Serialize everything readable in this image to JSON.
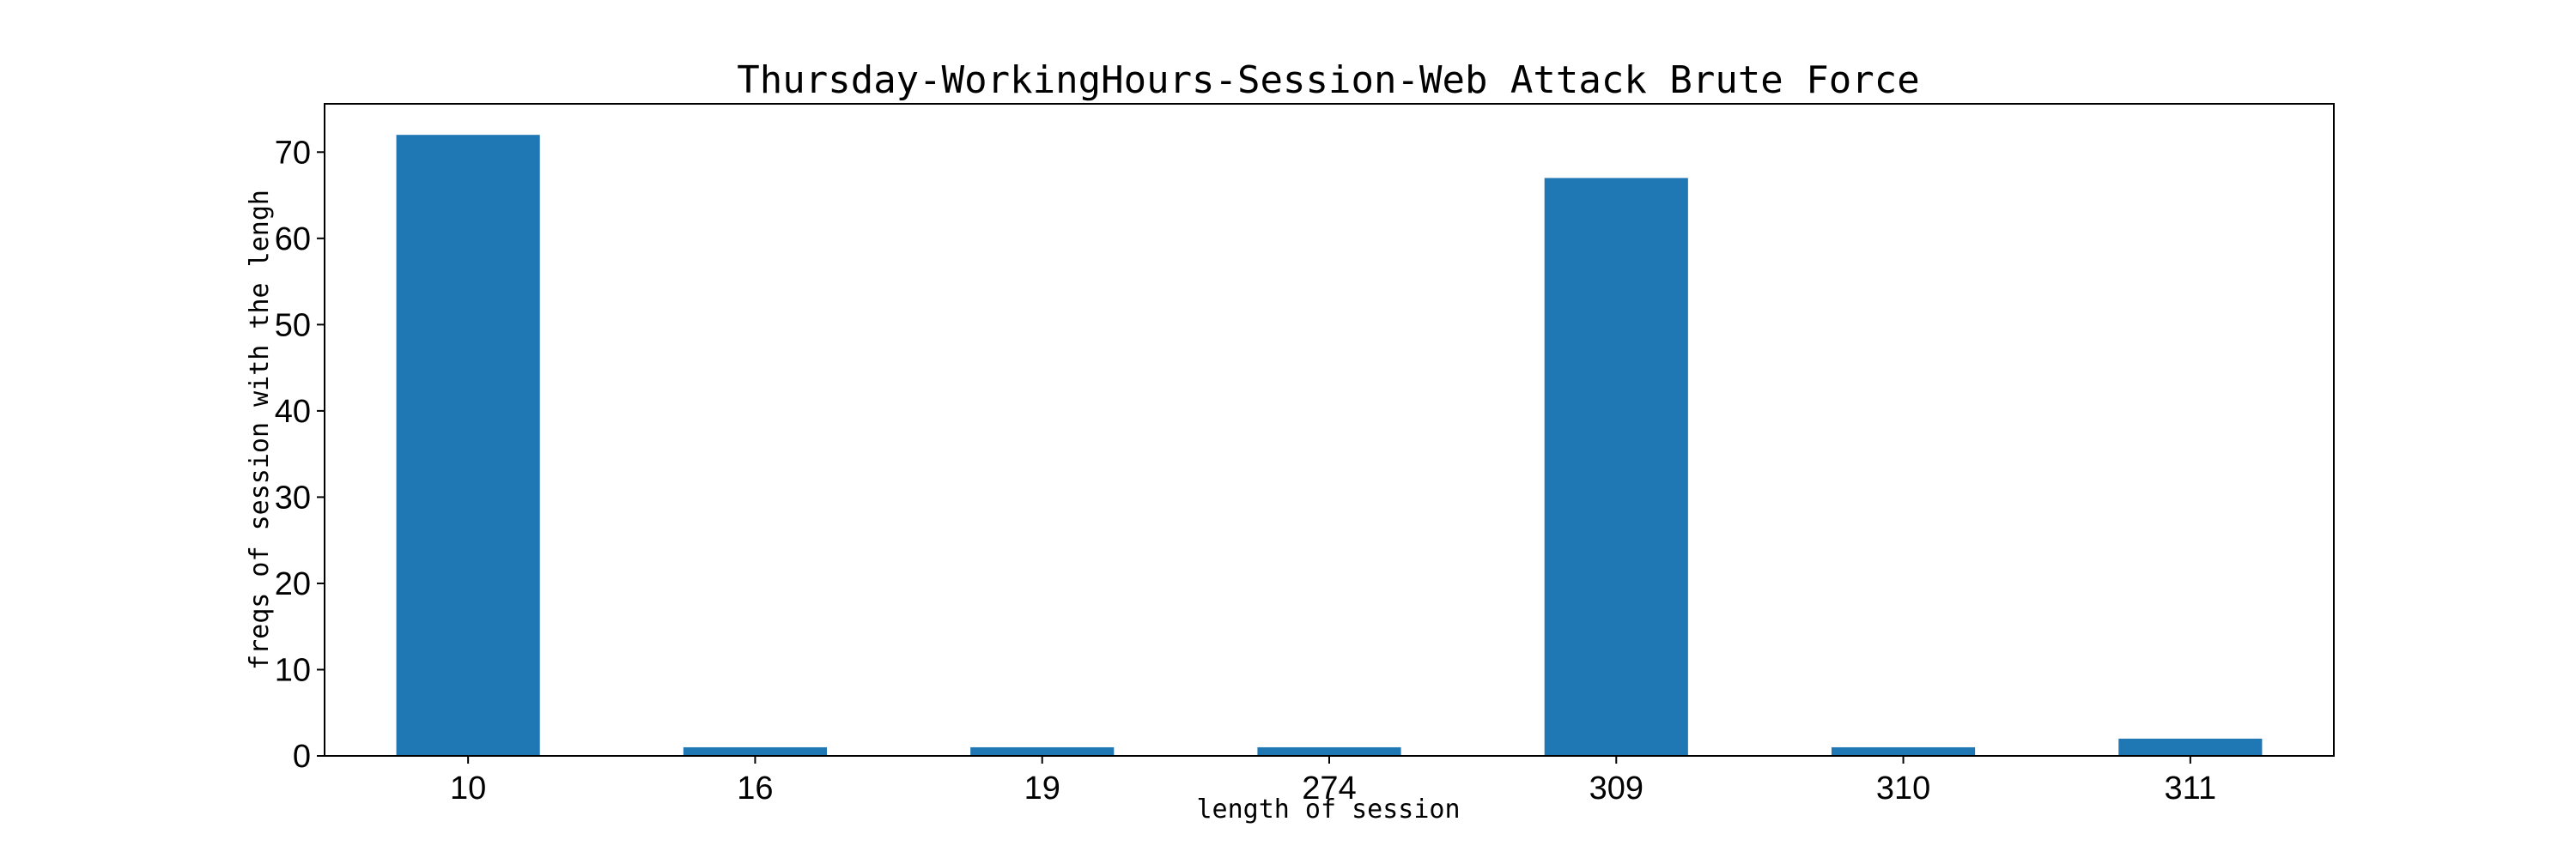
{
  "chart_data": {
    "type": "bar",
    "title": "Thursday-WorkingHours-Session-Web Attack  Brute Force",
    "xlabel": "length of session",
    "ylabel": "freqs of session with the lengh",
    "categories": [
      "10",
      "16",
      "19",
      "274",
      "309",
      "310",
      "311"
    ],
    "values": [
      72,
      1,
      1,
      1,
      67,
      1,
      2
    ],
    "ylim": [
      0,
      75.6
    ],
    "yticks": [
      0,
      10,
      20,
      30,
      40,
      50,
      60,
      70
    ],
    "grid": false,
    "bar_color": "#1f77b4"
  }
}
